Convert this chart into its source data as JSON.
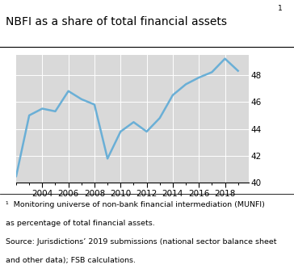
{
  "title": "NBFI as a share of total financial assets",
  "title_superscript": "1",
  "years": [
    2002,
    2003,
    2004,
    2005,
    2006,
    2007,
    2008,
    2009,
    2010,
    2011,
    2012,
    2013,
    2014,
    2015,
    2016,
    2017,
    2018,
    2019
  ],
  "values": [
    40.5,
    45.0,
    45.5,
    45.3,
    46.8,
    46.2,
    45.8,
    41.8,
    43.8,
    44.5,
    43.8,
    44.8,
    46.5,
    47.3,
    47.8,
    48.2,
    49.2,
    48.3
  ],
  "line_color": "#6aafd6",
  "line_width": 1.8,
  "ylim": [
    40,
    49.5
  ],
  "yticks": [
    40,
    42,
    44,
    46,
    48
  ],
  "xlim": [
    2002,
    2019.8
  ],
  "xticks": [
    2004,
    2006,
    2008,
    2010,
    2012,
    2014,
    2016,
    2018
  ],
  "bg_color": "#d9d9d9",
  "grid_color": "#ffffff",
  "footnote_line1": "¹  Monitoring universe of non-bank financial intermediation (MUNFI)",
  "footnote_line2": "as percentage of total financial assets.",
  "footnote_line3": "Source: Jurisdictions’ 2019 submissions (national sector balance sheet",
  "footnote_line4": "and other data); FSB calculations."
}
